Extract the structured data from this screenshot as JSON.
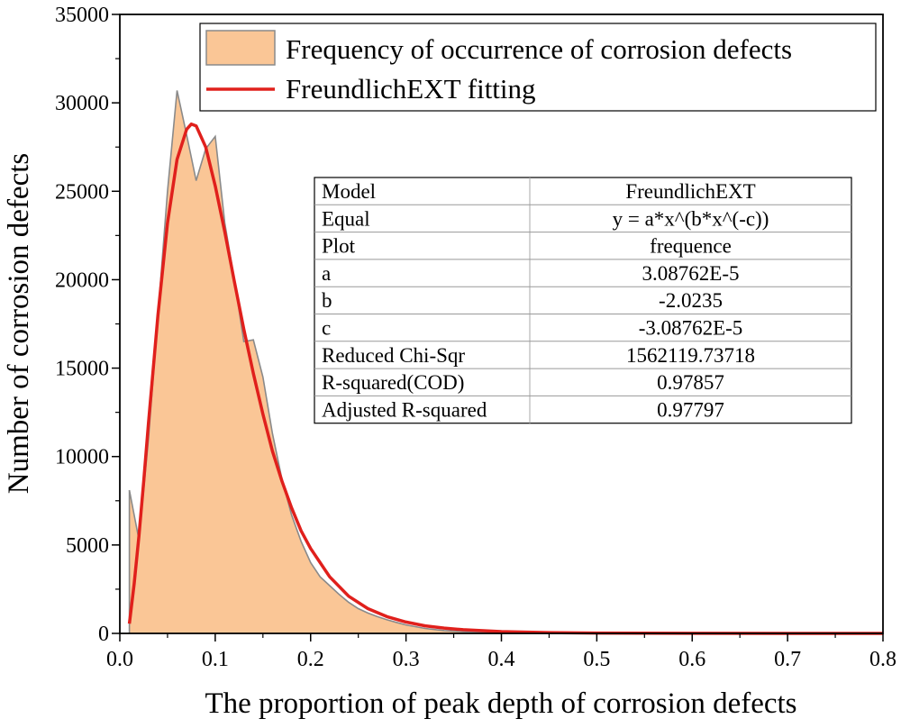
{
  "chart_data": {
    "type": "area",
    "xlabel": "The proportion of peak depth of corrosion defects",
    "ylabel": "Number of corrosion defects",
    "xlim": [
      0.0,
      0.8
    ],
    "ylim": [
      0,
      35000
    ],
    "x_ticks": [
      0.0,
      0.1,
      0.2,
      0.3,
      0.4,
      0.5,
      0.6,
      0.7,
      0.8
    ],
    "x_tick_labels": [
      "0.0",
      "0.1",
      "0.2",
      "0.3",
      "0.4",
      "0.5",
      "0.6",
      "0.7",
      "0.8"
    ],
    "y_ticks": [
      0,
      5000,
      10000,
      15000,
      20000,
      25000,
      30000,
      35000
    ],
    "y_tick_labels": [
      "0",
      "5000",
      "10000",
      "15000",
      "20000",
      "25000",
      "30000",
      "35000"
    ],
    "grid": false,
    "legend_position": "top-right",
    "series": [
      {
        "name": "Frequency of occurrence of corrosion defects",
        "type": "area",
        "fill": "#fac696",
        "stroke": "#8a8a8a",
        "x": [
          0.01,
          0.02,
          0.03,
          0.04,
          0.05,
          0.06,
          0.07,
          0.08,
          0.09,
          0.1,
          0.11,
          0.12,
          0.13,
          0.14,
          0.15,
          0.16,
          0.17,
          0.18,
          0.19,
          0.2,
          0.21,
          0.22,
          0.23,
          0.24,
          0.25,
          0.26,
          0.27,
          0.28,
          0.29,
          0.3,
          0.32,
          0.34,
          0.36,
          0.38,
          0.4,
          0.45,
          0.5,
          0.6,
          0.7,
          0.8
        ],
        "values": [
          8100,
          5300,
          11000,
          18000,
          25000,
          30700,
          28200,
          25600,
          27400,
          28100,
          23200,
          20000,
          16500,
          16600,
          14500,
          11300,
          8700,
          6700,
          5200,
          4000,
          3200,
          2700,
          2200,
          1750,
          1400,
          1150,
          950,
          770,
          620,
          480,
          280,
          160,
          95,
          60,
          40,
          20,
          10,
          5,
          2,
          0
        ]
      },
      {
        "name": "FreundlichEXT fitting",
        "type": "line",
        "color": "#e0201c",
        "x": [
          0.01,
          0.015,
          0.02,
          0.025,
          0.03,
          0.04,
          0.05,
          0.06,
          0.07,
          0.075,
          0.08,
          0.09,
          0.1,
          0.11,
          0.12,
          0.13,
          0.14,
          0.15,
          0.16,
          0.17,
          0.18,
          0.19,
          0.2,
          0.22,
          0.24,
          0.26,
          0.28,
          0.3,
          0.32,
          0.34,
          0.36,
          0.4,
          0.45,
          0.5,
          0.6,
          0.7,
          0.8
        ],
        "values": [
          550,
          2800,
          5500,
          8600,
          11900,
          18000,
          23200,
          26800,
          28500,
          28800,
          28700,
          27500,
          25300,
          22700,
          19900,
          17200,
          14700,
          12400,
          10300,
          8600,
          7100,
          5800,
          4800,
          3200,
          2100,
          1400,
          950,
          640,
          430,
          300,
          210,
          100,
          45,
          20,
          5,
          1,
          0
        ]
      }
    ],
    "fit_table": {
      "rows": [
        {
          "label": "Model",
          "value": "FreundlichEXT"
        },
        {
          "label": "Equal",
          "value": "y = a*x^(b*x^(-c))"
        },
        {
          "label": "Plot",
          "value": "frequence"
        },
        {
          "label": "a",
          "value": "3.08762E-5"
        },
        {
          "label": "b",
          "value": "-2.0235"
        },
        {
          "label": "c",
          "value": "-3.08762E-5"
        },
        {
          "label": "Reduced Chi-Sqr",
          "value": "1562119.73718"
        },
        {
          "label": "R-squared(COD)",
          "value": "0.97857"
        },
        {
          "label": "Adjusted R-squared",
          "value": "0.97797"
        }
      ]
    }
  }
}
